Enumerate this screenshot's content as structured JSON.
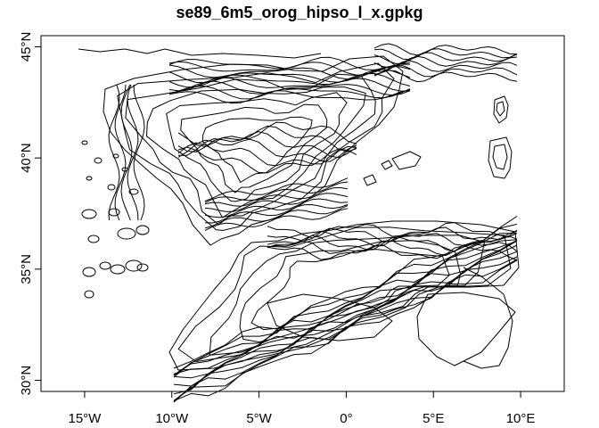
{
  "title": "se89_6m5_orog_hipso_l_x.gpkg",
  "map": {
    "x_range": [
      -17.5,
      12.5
    ],
    "y_range": [
      29.5,
      45.5
    ],
    "x_ticks": [
      {
        "value": -15,
        "label": "15°W"
      },
      {
        "value": -10,
        "label": "10°W"
      },
      {
        "value": -5,
        "label": "5°W"
      },
      {
        "value": 0,
        "label": "0°"
      },
      {
        "value": 5,
        "label": "5°E"
      },
      {
        "value": 10,
        "label": "10°E"
      }
    ],
    "y_ticks": [
      {
        "value": 30,
        "label": "30°N"
      },
      {
        "value": 35,
        "label": "35°N"
      },
      {
        "value": 40,
        "label": "40°N"
      },
      {
        "value": 45,
        "label": "45°N"
      }
    ],
    "line_color": "#000000",
    "frame_color": "#000000"
  }
}
